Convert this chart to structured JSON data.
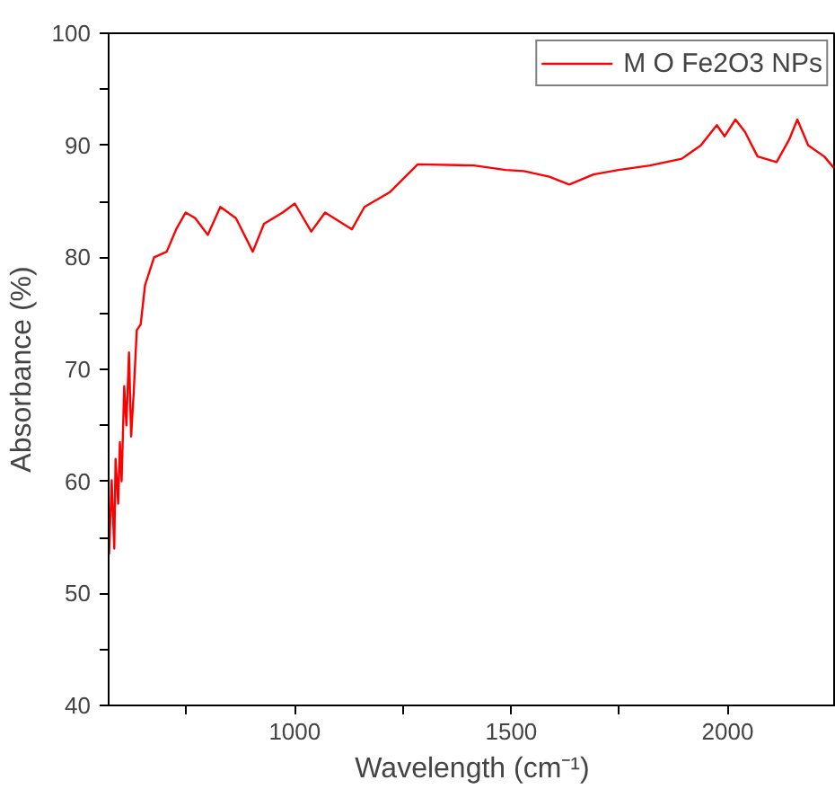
{
  "chart_data": {
    "type": "line",
    "xlabel": "Wavelength (cm⁻¹)",
    "ylabel": "Absorbance (%)",
    "xlim": [
      570,
      2250
    ],
    "ylim": [
      40,
      100
    ],
    "xticks": [
      {
        "value": 750,
        "label": null
      },
      1000,
      {
        "value": 1250,
        "label": null
      },
      1500,
      {
        "value": 1750,
        "label": null
      },
      2000
    ],
    "yticks": [
      40,
      {
        "value": 45,
        "label": null
      },
      50,
      {
        "value": 55,
        "label": null
      },
      60,
      {
        "value": 65,
        "label": null
      },
      70,
      {
        "value": 75,
        "label": null
      },
      80,
      {
        "value": 85,
        "label": null
      },
      90,
      {
        "value": 95,
        "label": null
      },
      100
    ],
    "grid": false,
    "legend": "top right",
    "marker": "none",
    "line_style": "solid",
    "series": [
      {
        "name": "M O Fe2O3 NPs",
        "color": "#ff0000",
        "x": [
          571,
          577,
          583,
          586,
          592,
          596,
          600,
          606,
          611,
          617,
          622,
          628,
          635,
          644,
          654,
          675,
          704,
          726,
          748,
          770,
          799,
          828,
          864,
          903,
          929,
          972,
          1000,
          1038,
          1070,
          1132,
          1161,
          1219,
          1284,
          1414,
          1487,
          1529,
          1588,
          1634,
          1690,
          1748,
          1821,
          1894,
          1938,
          1975,
          1993,
          2018,
          2040,
          2069,
          2113,
          2142,
          2161,
          2186,
          2223,
          2245
        ],
        "values": [
          53.5,
          60.1,
          54,
          62,
          58,
          63.5,
          60,
          68.5,
          65,
          71.5,
          64,
          68,
          73.5,
          74,
          77.5,
          80,
          80.5,
          82.5,
          84,
          83.5,
          82,
          84.5,
          83.5,
          80.5,
          83,
          84,
          84.8,
          82.3,
          84,
          82.5,
          84.5,
          85.8,
          88.3,
          88.2,
          87.8,
          87.7,
          87.2,
          86.5,
          87.4,
          87.8,
          88.2,
          88.8,
          90,
          91.8,
          90.8,
          92.3,
          91.2,
          89,
          88.5,
          90.5,
          92.3,
          90,
          89,
          88
        ]
      }
    ]
  }
}
